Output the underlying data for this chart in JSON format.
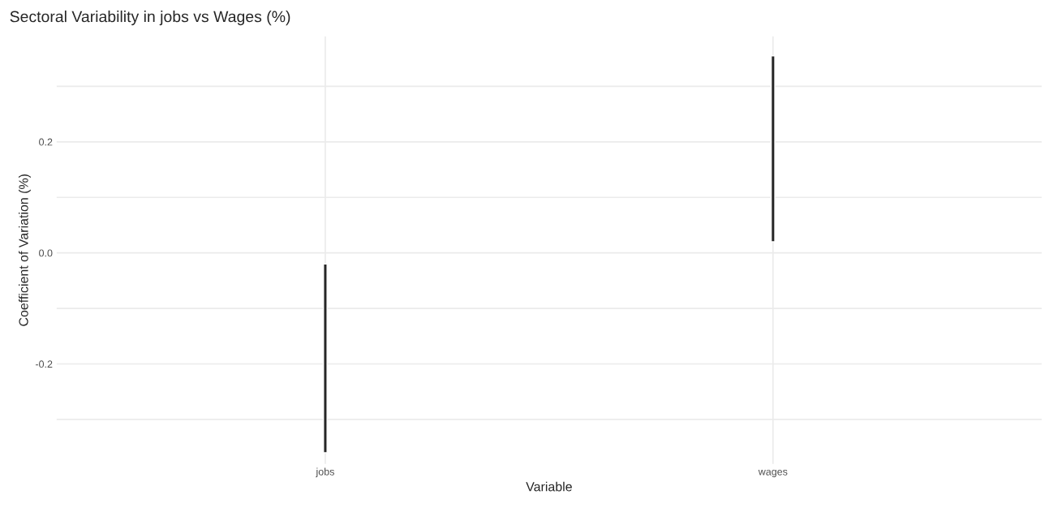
{
  "chart_data": {
    "type": "bar",
    "title": "Sectoral Variability in jobs vs Wages (%)",
    "xlabel": "Variable",
    "ylabel": "Coefficient of Variation (%)",
    "categories": [
      "jobs",
      "wages"
    ],
    "base": [
      -0.36,
      0.02
    ],
    "values": [
      0.34,
      0.335
    ],
    "color": "#262626",
    "ylim": [
      -0.38,
      0.39
    ],
    "yticks": [
      {
        "value": -0.3,
        "label": null
      },
      {
        "value": -0.2,
        "label": "-0.2"
      },
      {
        "value": -0.1,
        "label": null
      },
      {
        "value": 0.0,
        "label": "0.0"
      },
      {
        "value": 0.1,
        "label": null
      },
      {
        "value": 0.2,
        "label": "0.2"
      },
      {
        "value": 0.3,
        "label": null
      }
    ],
    "grid": true
  }
}
